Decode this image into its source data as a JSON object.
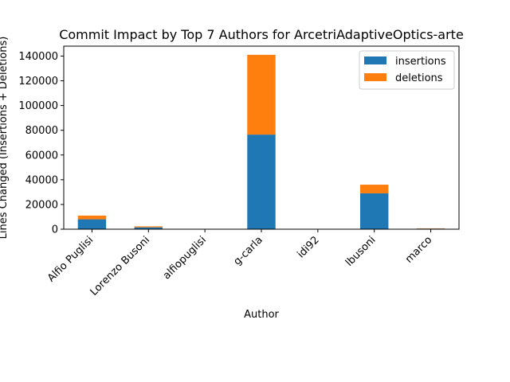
{
  "chart_data": {
    "type": "bar",
    "stacked": true,
    "title": "Commit Impact by Top 7 Authors for ArcetriAdaptiveOptics-arte",
    "xlabel": "Author",
    "ylabel": "Lines Changed (Insertions + Deletions)",
    "categories": [
      "Alfio Puglisi",
      "Lorenzo Busoni",
      "alfiopuglisi",
      "g-carla",
      "idi92",
      "lbusoni",
      "marco"
    ],
    "series": [
      {
        "name": "insertions",
        "color": "#1f77b4",
        "values": [
          8000,
          1500,
          100,
          76500,
          0,
          29000,
          500
        ]
      },
      {
        "name": "deletions",
        "color": "#ff7f0e",
        "values": [
          3000,
          800,
          100,
          64500,
          0,
          7000,
          200
        ]
      }
    ],
    "ylim": [
      0,
      148000
    ],
    "yticks": [
      0,
      20000,
      40000,
      60000,
      80000,
      100000,
      120000,
      140000
    ],
    "grid": false,
    "legend": "top-right"
  }
}
